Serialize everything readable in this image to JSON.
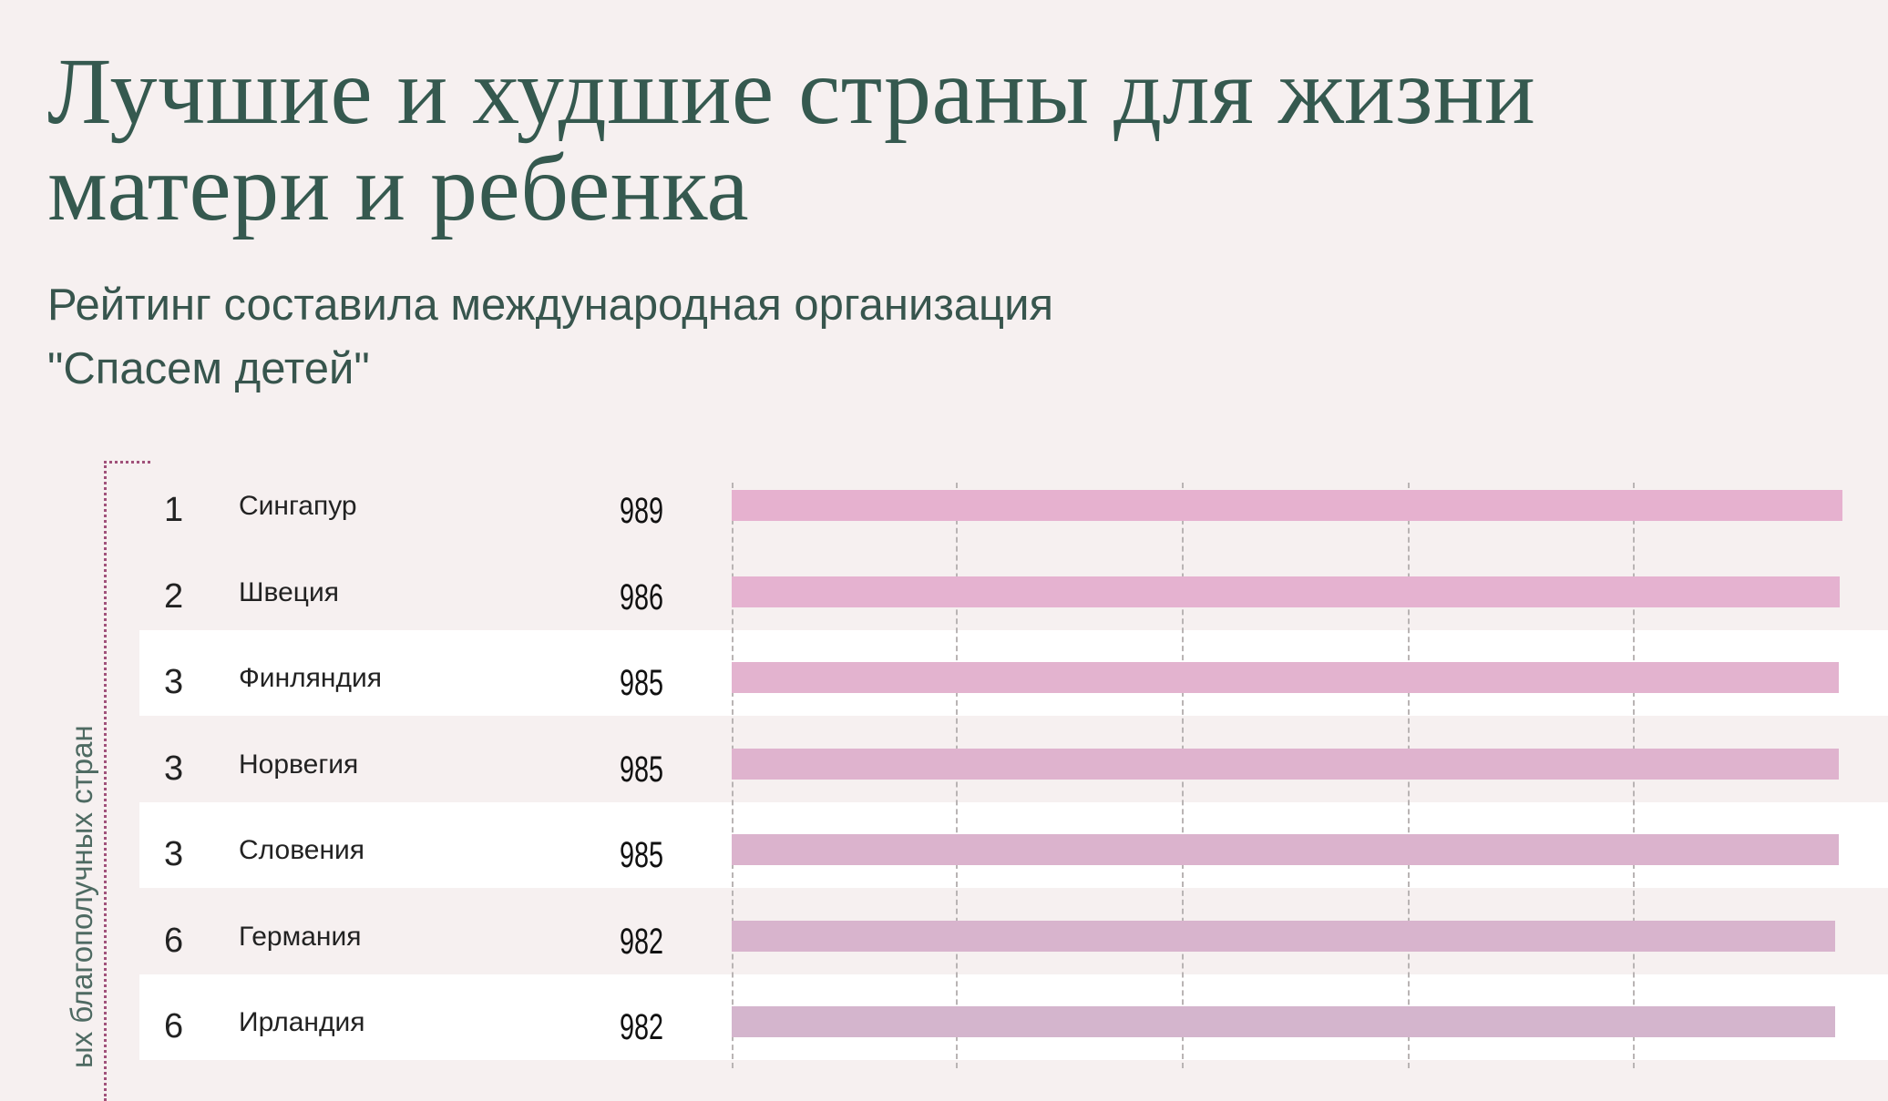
{
  "chart_data": {
    "type": "bar",
    "title": "Лучшие и худшие страны для жизни матери и ребенка",
    "subtitle": "Рейтинг составила международная организация\n\"Спасем детей\"",
    "group_label": "ых благополучных стран",
    "orientation": "horizontal",
    "gridlines": true,
    "categories": [
      "Сингапур",
      "Швеция",
      "Финляндия",
      "Норвегия",
      "Словения",
      "Германия",
      "Ирландия"
    ],
    "ranks": [
      "1",
      "2",
      "3",
      "3",
      "3",
      "6",
      "6"
    ],
    "values": [
      989,
      986,
      985,
      985,
      985,
      982,
      982
    ],
    "value_labels": [
      "989",
      "986",
      "985",
      "985",
      "985",
      "982",
      "982"
    ],
    "xlim": [
      0,
      1000
    ],
    "bar_colors": [
      "#e6b1cf",
      "#e5b2d0",
      "#e3b3cf",
      "#dfb3ce",
      "#dbb3cd",
      "#d8b4cd",
      "#d4b5cd"
    ],
    "striped_rows": true
  }
}
